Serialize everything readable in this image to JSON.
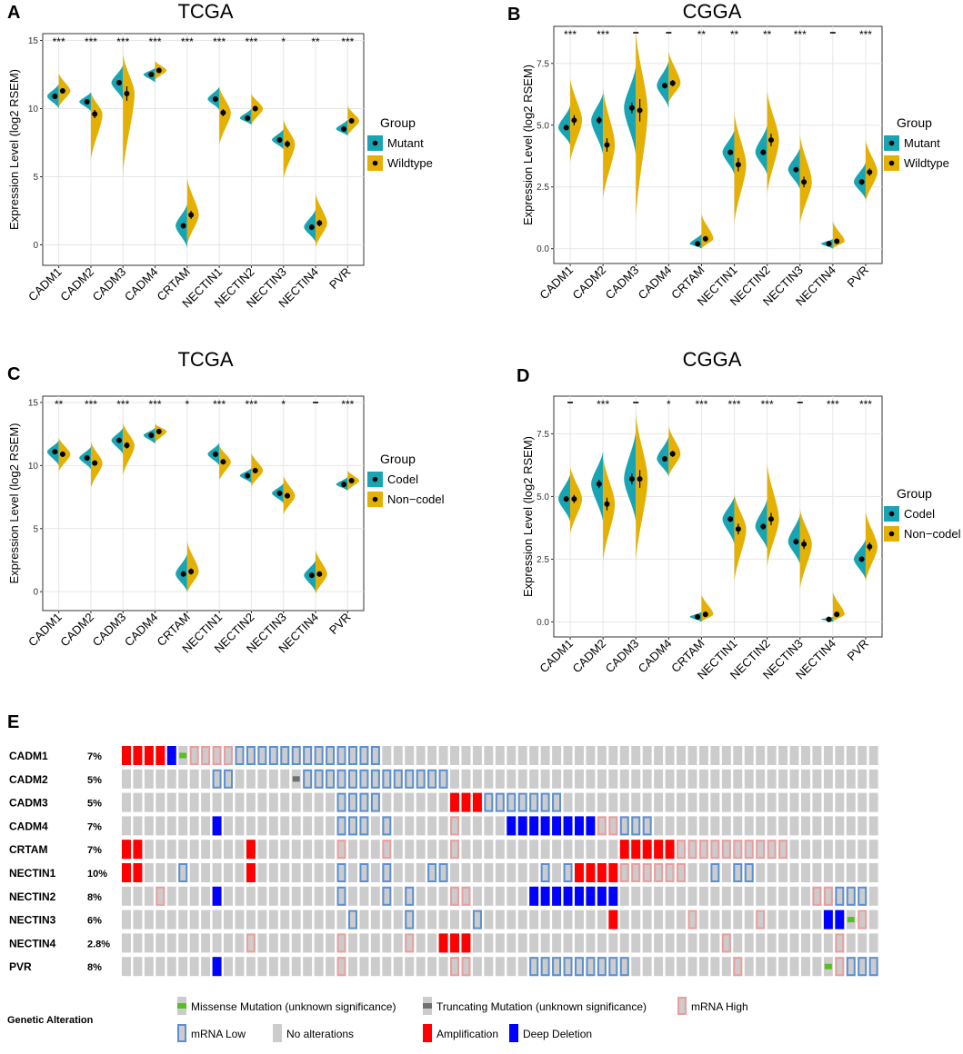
{
  "colors": {
    "teal": "#18a4b2",
    "gold": "#e4b004",
    "grid": "#e6e6e6",
    "panel_border": "#333333",
    "no_alt": "#cccccc",
    "amp": "#ff0000",
    "del": "#0000ff",
    "mrna_low": "#5b8fd1",
    "mrna_high": "#eb9d9d",
    "missense": "#53c11f",
    "trunc": "#707070"
  },
  "chart_data": [
    {
      "panel": "A",
      "title": "TCGA",
      "type": "violin",
      "ylabel": "Expression Level (log2 RSEM)",
      "ylim": [
        -1.5,
        15.5
      ],
      "yticks": [
        0,
        5,
        10,
        15
      ],
      "categories": [
        "CADM1",
        "CADM2",
        "CADM3",
        "CADM4",
        "CRTAM",
        "NECTIN1",
        "NECTIN2",
        "NECTIN3",
        "NECTIN4",
        "PVR"
      ],
      "significance": [
        "***",
        "***",
        "***",
        "***",
        "***",
        "***",
        "***",
        "*",
        "**",
        "***"
      ],
      "legend": {
        "title": "Group",
        "items": [
          "Mutant",
          "Wildtype"
        ]
      },
      "series": [
        {
          "name": "Mutant",
          "means": [
            10.9,
            10.5,
            11.9,
            12.5,
            1.4,
            10.7,
            9.3,
            7.7,
            1.3,
            8.5
          ],
          "ranges": [
            [
              10,
              11.8
            ],
            [
              9.8,
              11.2
            ],
            [
              10.6,
              13.2
            ],
            [
              11.9,
              13.0
            ],
            [
              -0.2,
              3.0
            ],
            [
              9.9,
              11.6
            ],
            [
              8.8,
              10.0
            ],
            [
              7.0,
              8.5
            ],
            [
              0.2,
              2.6
            ],
            [
              8.0,
              9.2
            ]
          ]
        },
        {
          "name": "Wildtype",
          "means": [
            11.3,
            9.6,
            11.1,
            12.8,
            2.2,
            9.7,
            10.0,
            7.4,
            1.6,
            9.1
          ],
          "ranges": [
            [
              10.1,
              12.6
            ],
            [
              6.2,
              11.2
            ],
            [
              5.2,
              14.0
            ],
            [
              12.1,
              13.5
            ],
            [
              0,
              4.9
            ],
            [
              7.3,
              11.6
            ],
            [
              8.8,
              11.1
            ],
            [
              4.8,
              9.2
            ],
            [
              -0.2,
              3.8
            ],
            [
              8.0,
              10.2
            ]
          ]
        }
      ]
    },
    {
      "panel": "B",
      "title": "CGGA",
      "type": "violin",
      "ylabel": "Expression Level (log2 RSEM)",
      "ylim": [
        -0.6,
        9.0
      ],
      "yticks": [
        0.0,
        2.5,
        5.0,
        7.5
      ],
      "ytick_labels": [
        "0.0",
        "2.5",
        "5.0",
        "7.5"
      ],
      "categories": [
        "CADM1",
        "CADM2",
        "CADM3",
        "CADM4",
        "CRTAM",
        "NECTIN1",
        "NECTIN2",
        "NECTIN3",
        "NECTIN4",
        "PVR"
      ],
      "significance": [
        "***",
        "***",
        "_",
        "_",
        "**",
        "**",
        "**",
        "***",
        "_",
        "***"
      ],
      "legend": {
        "title": "Group",
        "items": [
          "Mutant",
          "Wildtype"
        ]
      },
      "series": [
        {
          "name": "Mutant",
          "means": [
            4.9,
            5.2,
            5.7,
            6.6,
            0.2,
            3.9,
            3.9,
            3.2,
            0.2,
            2.7
          ],
          "ranges": [
            [
              4.2,
              5.8
            ],
            [
              3.8,
              6.3
            ],
            [
              3.8,
              7.4
            ],
            [
              5.7,
              7.6
            ],
            [
              0,
              0.6
            ],
            [
              3.0,
              4.8
            ],
            [
              3.0,
              5.0
            ],
            [
              2.4,
              4.1
            ],
            [
              0,
              0.4
            ],
            [
              2.0,
              3.5
            ]
          ]
        },
        {
          "name": "Wildtype",
          "means": [
            5.2,
            4.2,
            5.6,
            6.7,
            0.4,
            3.4,
            4.4,
            2.7,
            0.3,
            3.1
          ],
          "ranges": [
            [
              3.5,
              6.9
            ],
            [
              2.0,
              6.5
            ],
            [
              1.2,
              8.8
            ],
            [
              5.9,
              8.0
            ],
            [
              0,
              1.4
            ],
            [
              1.0,
              5.5
            ],
            [
              2.2,
              6.4
            ],
            [
              1.0,
              4.6
            ],
            [
              0,
              1.1
            ],
            [
              1.9,
              4.4
            ]
          ]
        }
      ]
    },
    {
      "panel": "C",
      "title": "TCGA",
      "type": "violin",
      "ylabel": "Expression Level (log2 RSEM)",
      "ylim": [
        -1.5,
        15.5
      ],
      "yticks": [
        0,
        5,
        10,
        15
      ],
      "categories": [
        "CADM1",
        "CADM2",
        "CADM3",
        "CADM4",
        "CRTAM",
        "NECTIN1",
        "NECTIN2",
        "NECTIN3",
        "NECTIN4",
        "PVR"
      ],
      "significance": [
        "**",
        "***",
        "***",
        "***",
        "*",
        "***",
        "***",
        "*",
        "_",
        "***"
      ],
      "legend": {
        "title": "Group",
        "items": [
          "Codel",
          "Non−codel"
        ]
      },
      "series": [
        {
          "name": "Codel",
          "means": [
            11.1,
            10.6,
            12.0,
            12.4,
            1.4,
            10.9,
            9.2,
            7.8,
            1.3,
            8.5
          ],
          "ranges": [
            [
              10.0,
              12.0
            ],
            [
              9.7,
              11.5
            ],
            [
              10.9,
              13.0
            ],
            [
              11.7,
              13.0
            ],
            [
              0,
              3.0
            ],
            [
              10.0,
              11.8
            ],
            [
              8.6,
              9.8
            ],
            [
              7.0,
              8.6
            ],
            [
              0,
              2.5
            ],
            [
              8.0,
              9.1
            ]
          ]
        },
        {
          "name": "Non−codel",
          "means": [
            10.9,
            10.2,
            11.6,
            12.7,
            1.6,
            10.3,
            9.6,
            7.6,
            1.4,
            8.8
          ],
          "ranges": [
            [
              9.5,
              12.2
            ],
            [
              8.2,
              11.9
            ],
            [
              9.2,
              13.4
            ],
            [
              11.8,
              13.3
            ],
            [
              -0.1,
              4.0
            ],
            [
              8.8,
              11.6
            ],
            [
              8.3,
              11.0
            ],
            [
              6.1,
              9.2
            ],
            [
              -0.2,
              3.3
            ],
            [
              8.0,
              9.6
            ]
          ]
        }
      ]
    },
    {
      "panel": "D",
      "title": "CGGA",
      "type": "violin",
      "ylabel": "Expression Level (log2 RSEM)",
      "ylim": [
        -0.6,
        9.0
      ],
      "yticks": [
        0.0,
        2.5,
        5.0,
        7.5
      ],
      "ytick_labels": [
        "0.0",
        "2.5",
        "5.0",
        "7.5"
      ],
      "categories": [
        "CADM1",
        "CADM2",
        "CADM3",
        "CADM4",
        "CRTAM",
        "NECTIN1",
        "NECTIN2",
        "NECTIN3",
        "NECTIN4",
        "PVR"
      ],
      "significance": [
        "_",
        "***",
        "_",
        "*",
        "***",
        "***",
        "***",
        "_",
        "***",
        "***"
      ],
      "legend": {
        "title": "Group",
        "items": [
          "Codel",
          "Non−codel"
        ]
      },
      "series": [
        {
          "name": "Codel",
          "means": [
            4.9,
            5.5,
            5.7,
            6.5,
            0.2,
            4.1,
            3.8,
            3.2,
            0.1,
            2.5
          ],
          "ranges": [
            [
              4.0,
              5.9
            ],
            [
              4.0,
              6.8
            ],
            [
              4.0,
              7.6
            ],
            [
              5.8,
              7.4
            ],
            [
              0,
              0.4
            ],
            [
              3.1,
              5.0
            ],
            [
              2.9,
              4.9
            ],
            [
              2.3,
              4.3
            ],
            [
              0,
              0.2
            ],
            [
              1.7,
              3.3
            ]
          ]
        },
        {
          "name": "Non−codel",
          "means": [
            4.9,
            4.7,
            5.7,
            6.7,
            0.3,
            3.7,
            4.1,
            3.1,
            0.3,
            3.0
          ],
          "ranges": [
            [
              3.5,
              6.2
            ],
            [
              2.4,
              6.6
            ],
            [
              2.4,
              8.3
            ],
            [
              5.8,
              7.8
            ],
            [
              0,
              1.1
            ],
            [
              1.6,
              5.1
            ],
            [
              2.2,
              6.3
            ],
            [
              1.3,
              4.5
            ],
            [
              0,
              1.2
            ],
            [
              1.6,
              4.4
            ]
          ]
        }
      ]
    },
    {
      "panel": "E",
      "type": "oncoprint",
      "n_samples": 67,
      "genes": [
        "CADM1",
        "CADM2",
        "CADM3",
        "CADM4",
        "CRTAM",
        "NECTIN1",
        "NECTIN2",
        "NECTIN3",
        "NECTIN4",
        "PVR"
      ],
      "percents": [
        "7%",
        "5%",
        "5%",
        "7%",
        "7%",
        "10%",
        "8%",
        "6%",
        "2.8%",
        "8%"
      ],
      "code_legend": "A=Amplification, D=Deep Deletion, L=mRNA Low, H=mRNA High, M=Missense Mutation, T=Truncating Mutation, dot=No alterations",
      "rows": [
        "AAAADMHHHHLLLLLLLLLLLLL............................................",
        "........LL.....TLLLLLLLLLLLLL......................................",
        "...................LLLL......AAALLLLLLL............................",
        "........D..........LLL.L.....H....DDDDDDDDHHLLL...................",
        "AA.........A.......H...H.....H..............AAAAAHHHHHHHHHH.......",
        "AA...L.....A.......L.L.L...LL........L.LAAAAHHHHHH..L.LL..........",
        "...H....D..........L...L.L...HH.....DDDDDDDD.................HHLLL",
        "....................L....L.....L...........A......H.....H.....DDMH",
        "...........H.......H.....H..AAA......................H.........H..",
        "........D..........H.........HH.....LLLLLLLLL.........H.......MHLLL"
      ],
      "legend": {
        "title": "Genetic Alteration",
        "items": [
          {
            "code": "M",
            "label": "Missense Mutation (unknown significance)"
          },
          {
            "code": "T",
            "label": "Truncating Mutation (unknown significance)"
          },
          {
            "code": "H",
            "label": "mRNA High"
          },
          {
            "code": "L",
            "label": "mRNA Low"
          },
          {
            "code": ".",
            "label": "No alterations"
          },
          {
            "code": "A",
            "label": "Amplification"
          },
          {
            "code": "D",
            "label": "Deep Deletion"
          }
        ]
      }
    }
  ]
}
